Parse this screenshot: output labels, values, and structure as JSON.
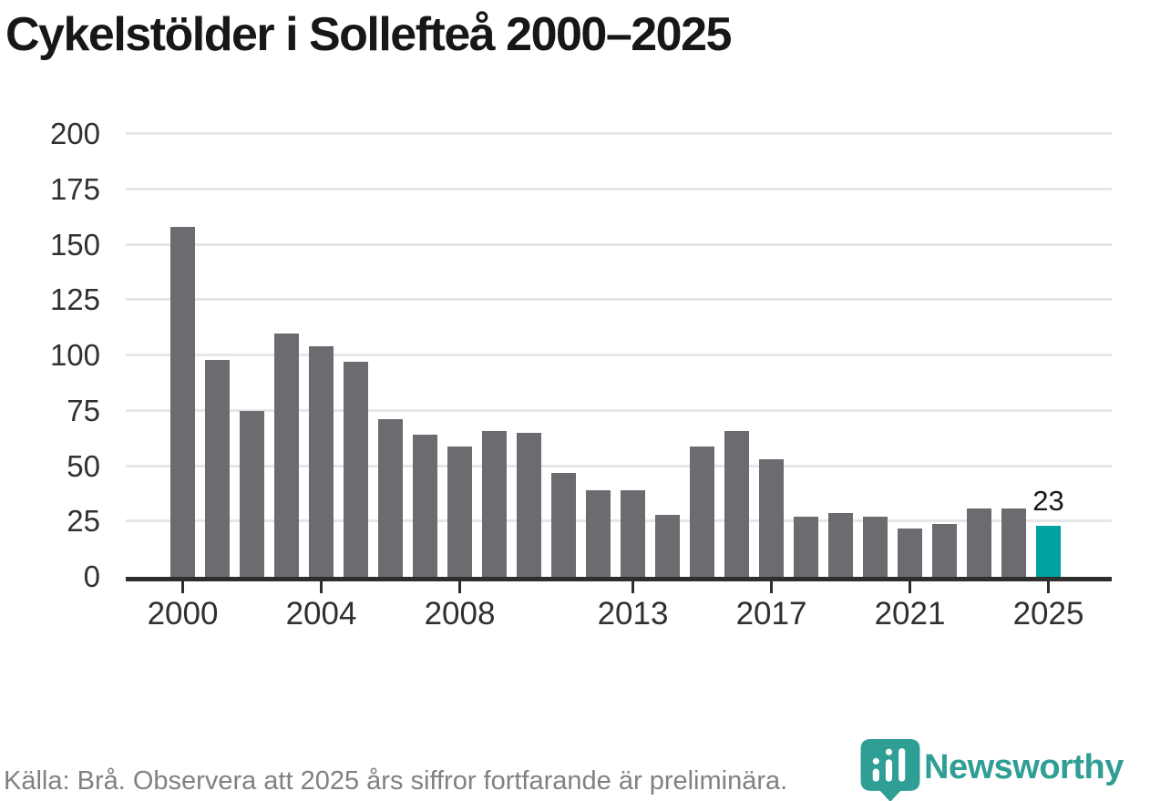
{
  "title": "Cykelstölder i Sollefteå 2000–2025",
  "chart_data": {
    "type": "bar",
    "title": "Cykelstölder i Sollefteå 2000–2025",
    "x": [
      2000,
      2001,
      2002,
      2003,
      2004,
      2005,
      2006,
      2007,
      2008,
      2009,
      2010,
      2011,
      2012,
      2013,
      2014,
      2015,
      2016,
      2017,
      2018,
      2019,
      2020,
      2021,
      2022,
      2023,
      2024,
      2025
    ],
    "values": [
      158,
      98,
      75,
      110,
      104,
      97,
      71,
      64,
      59,
      66,
      65,
      47,
      39,
      39,
      28,
      59,
      66,
      53,
      27,
      29,
      27,
      22,
      24,
      31,
      31,
      23
    ],
    "ylim": [
      0,
      200
    ],
    "yticks": [
      0,
      25,
      50,
      75,
      100,
      125,
      150,
      175,
      200
    ],
    "xticks": [
      2000,
      2004,
      2008,
      2013,
      2017,
      2021,
      2025
    ],
    "grid": true,
    "legend": "none",
    "highlight_year": 2025,
    "value_labels": [
      {
        "year": 2025,
        "text": "23"
      }
    ]
  },
  "footer": {
    "source": "Källa: Brå. Observera att 2025 års siffror fortfarande är preliminära."
  },
  "logo": {
    "brand": "Newsworthy",
    "pin_icon": "bar-chart-map-pin-icon"
  },
  "colors": {
    "bar": "#6b6b70",
    "highlight": "#00a1a1",
    "axis": "#2e2e2e",
    "grid": "#e6e6e6",
    "title": "#171717",
    "tick_label": "#303030",
    "footer": "#818181",
    "logo": "#2f9e94"
  }
}
